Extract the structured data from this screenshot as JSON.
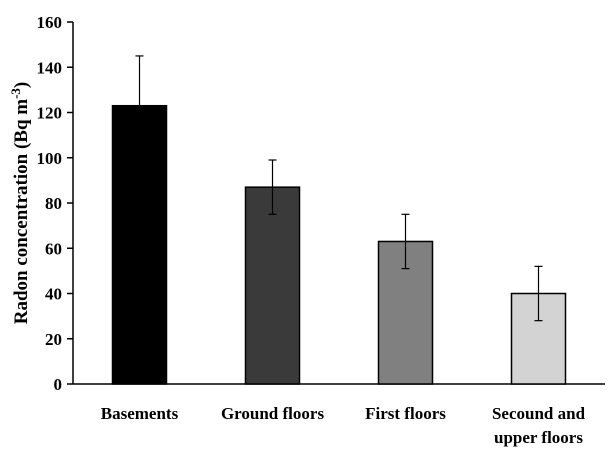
{
  "chart_data": {
    "type": "bar",
    "categories": [
      [
        "Basements"
      ],
      [
        "Ground floors"
      ],
      [
        "First floors"
      ],
      [
        "Secound and",
        "upper floors"
      ]
    ],
    "values": [
      123,
      87,
      63,
      40
    ],
    "error": [
      22,
      12,
      12,
      12
    ],
    "bar_colors": [
      "#000000",
      "#3a3a3a",
      "#808080",
      "#d3d3d3"
    ],
    "ylabel": "Radon concentration (Bq m",
    "ylabel_sup": "-3",
    "ylabel_close": ")",
    "ylim": [
      0,
      160
    ],
    "yticks": [
      0,
      20,
      40,
      60,
      80,
      100,
      120,
      140,
      160
    ],
    "grid": false,
    "legend": "none"
  }
}
